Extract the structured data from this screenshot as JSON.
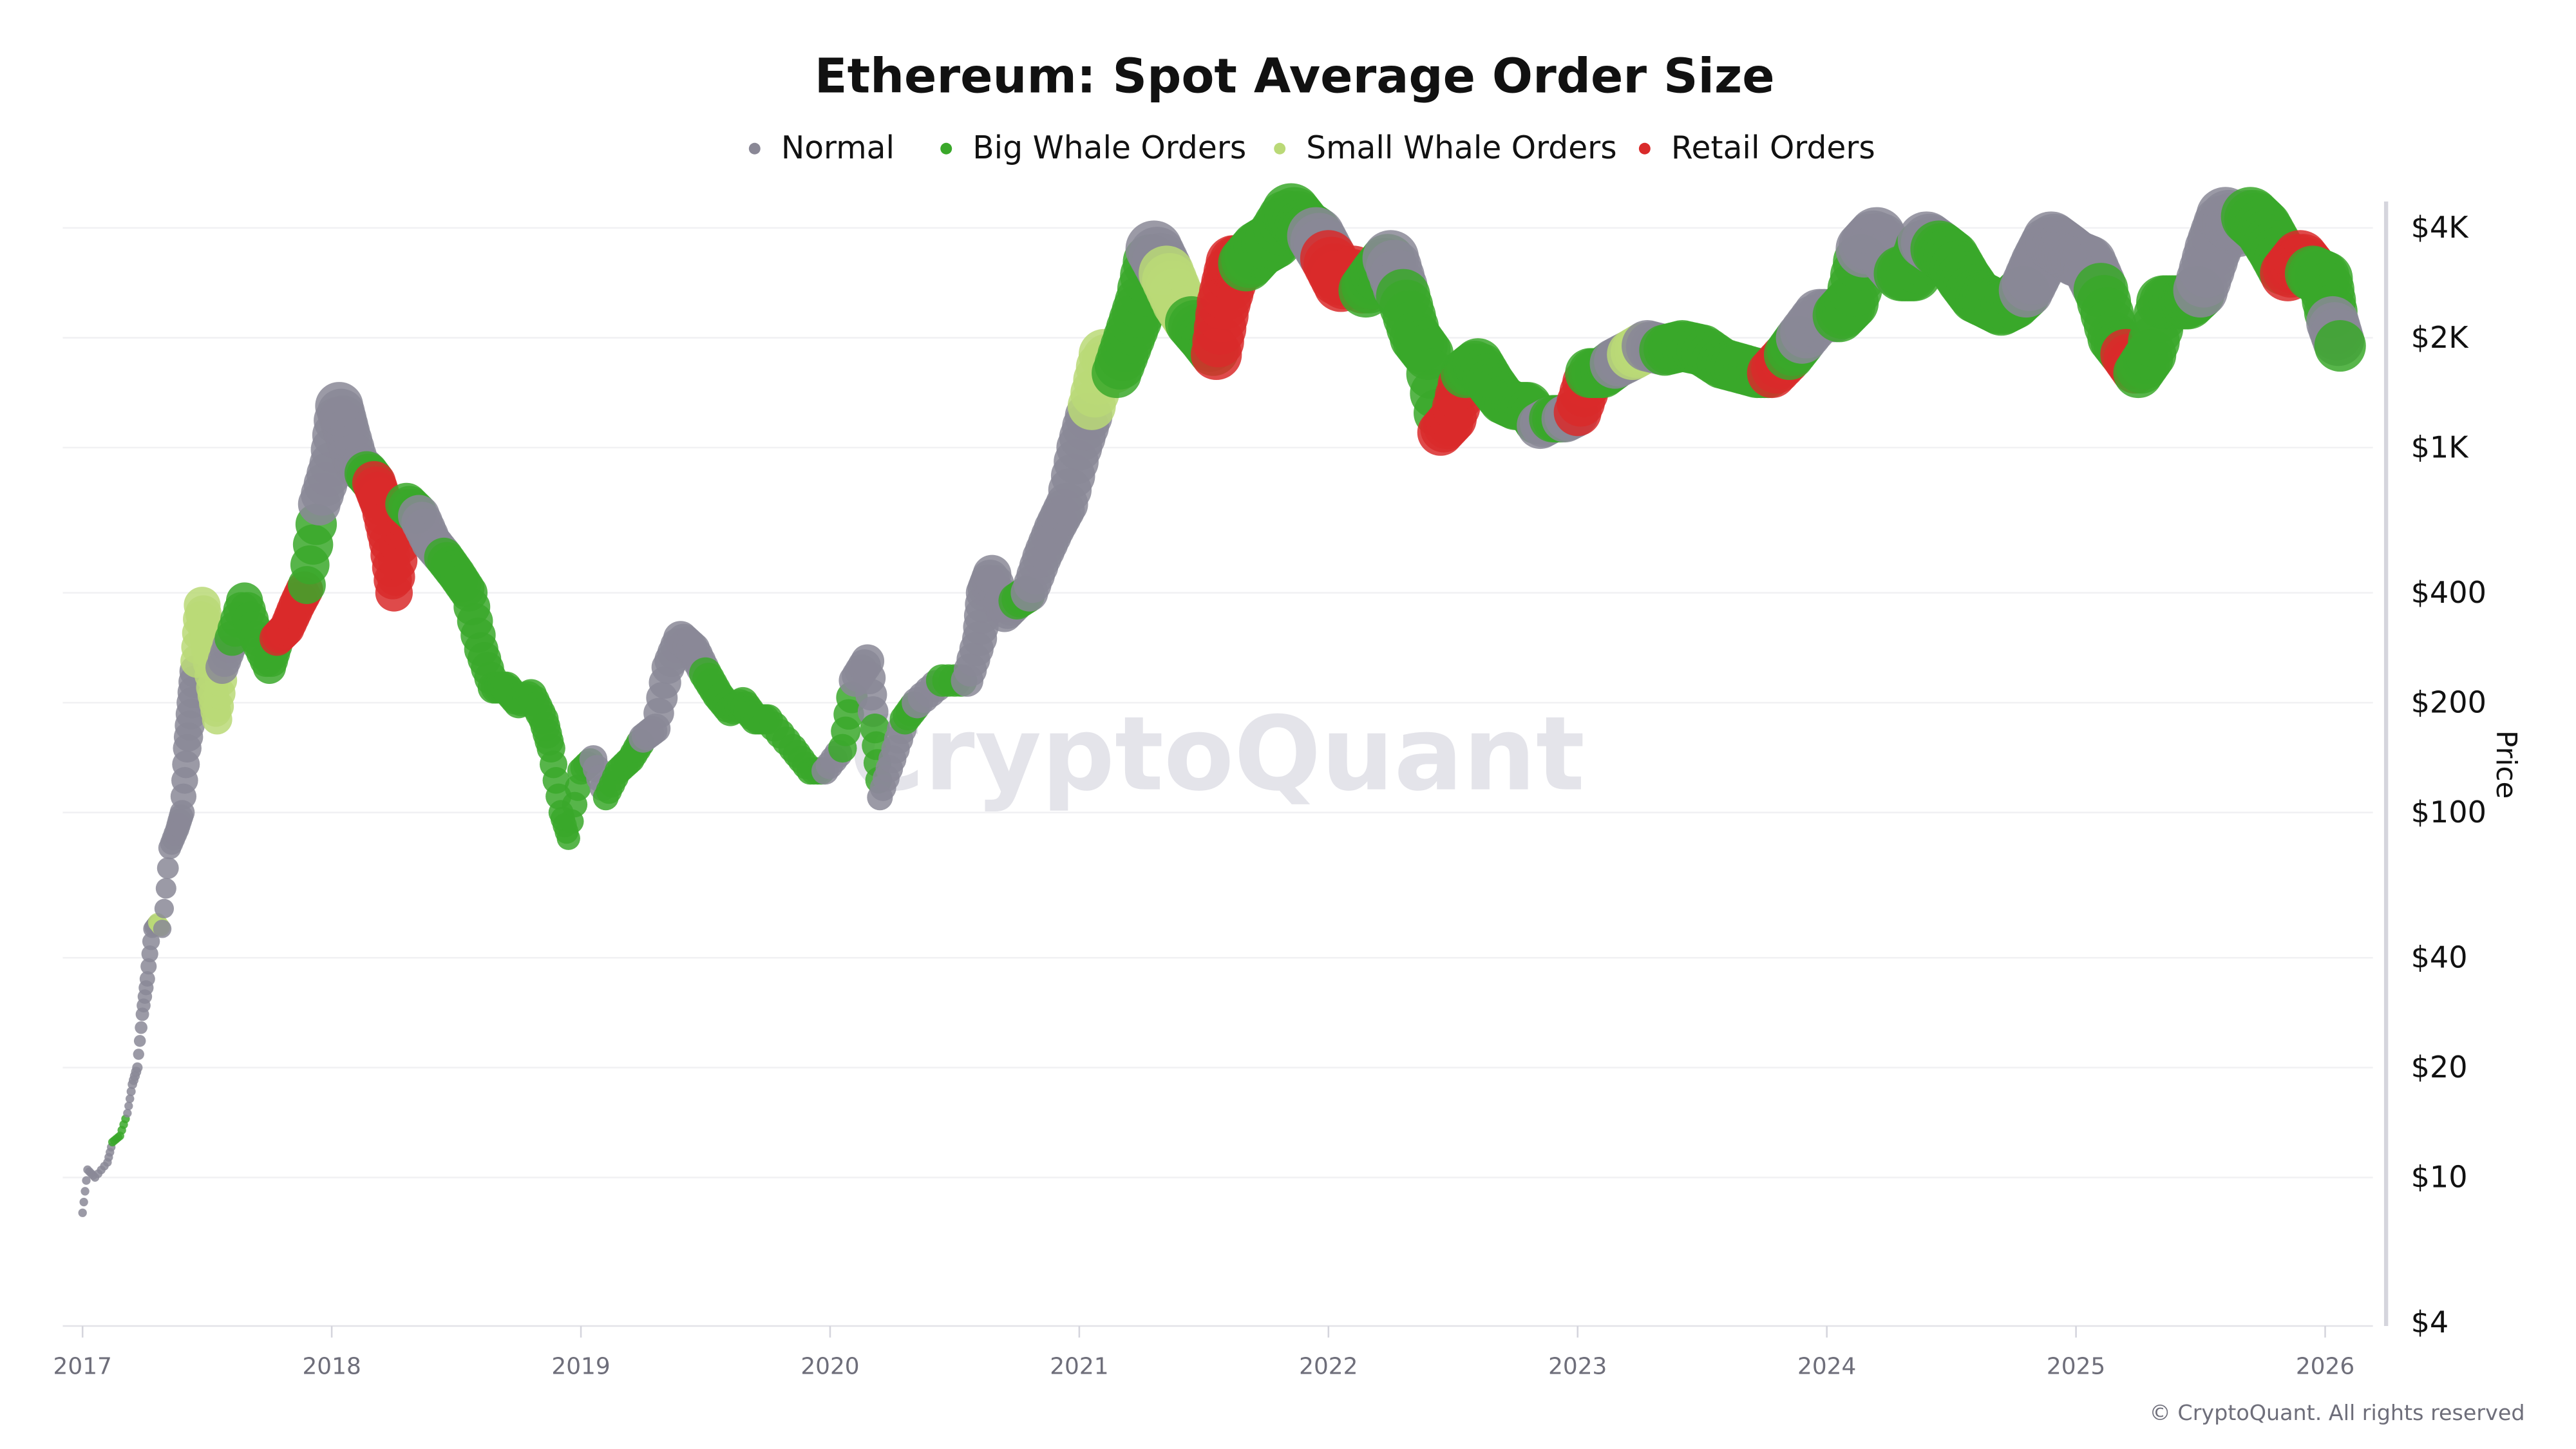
{
  "chart_data": {
    "type": "scatter",
    "title": "Ethereum: Spot Average Order Size",
    "ylabel": "Price",
    "xlabel": "",
    "y_scale": "log",
    "ylim": [
      4,
      4000
    ],
    "xlim": [
      2017,
      2026.1
    ],
    "grid": true,
    "legend_position": "top",
    "y_ticks": [
      {
        "value": 4000,
        "label": "$4K"
      },
      {
        "value": 2000,
        "label": "$2K"
      },
      {
        "value": 1000,
        "label": "$1K"
      },
      {
        "value": 400,
        "label": "$400"
      },
      {
        "value": 200,
        "label": "$200"
      },
      {
        "value": 100,
        "label": "$100"
      },
      {
        "value": 40,
        "label": "$40"
      },
      {
        "value": 20,
        "label": "$20"
      },
      {
        "value": 10,
        "label": "$10"
      },
      {
        "value": 4,
        "label": "$4"
      }
    ],
    "x_ticks": [
      "2017",
      "2018",
      "2019",
      "2020",
      "2021",
      "2022",
      "2023",
      "2024",
      "2025",
      "2026"
    ],
    "series": [
      {
        "key": "N",
        "name": "Normal",
        "color": "#8a8896"
      },
      {
        "key": "B",
        "name": "Big Whale Orders",
        "color": "#3aa82a"
      },
      {
        "key": "S",
        "name": "Small Whale Orders",
        "color": "#bad977"
      },
      {
        "key": "R",
        "name": "Retail Orders",
        "color": "#d92a2a"
      }
    ],
    "points_columns": [
      "year",
      "price",
      "category"
    ],
    "points": [
      [
        2017.0,
        8,
        "N"
      ],
      [
        2017.02,
        10.5,
        "N"
      ],
      [
        2017.05,
        10,
        "N"
      ],
      [
        2017.1,
        11,
        "N"
      ],
      [
        2017.12,
        12.5,
        "B"
      ],
      [
        2017.15,
        13,
        "B"
      ],
      [
        2017.18,
        15,
        "N"
      ],
      [
        2017.2,
        18,
        "N"
      ],
      [
        2017.22,
        20,
        "N"
      ],
      [
        2017.24,
        28,
        "N"
      ],
      [
        2017.26,
        35,
        "N"
      ],
      [
        2017.28,
        48,
        "N"
      ],
      [
        2017.3,
        50,
        "S"
      ],
      [
        2017.32,
        48,
        "N"
      ],
      [
        2017.35,
        80,
        "N"
      ],
      [
        2017.38,
        90,
        "N"
      ],
      [
        2017.4,
        100,
        "N"
      ],
      [
        2017.42,
        150,
        "N"
      ],
      [
        2017.44,
        200,
        "N"
      ],
      [
        2017.46,
        260,
        "S"
      ],
      [
        2017.48,
        370,
        "S"
      ],
      [
        2017.5,
        300,
        "S"
      ],
      [
        2017.52,
        220,
        "S"
      ],
      [
        2017.54,
        180,
        "S"
      ],
      [
        2017.56,
        250,
        "N"
      ],
      [
        2017.6,
        300,
        "B"
      ],
      [
        2017.65,
        380,
        "B"
      ],
      [
        2017.7,
        300,
        "B"
      ],
      [
        2017.75,
        250,
        "B"
      ],
      [
        2017.78,
        300,
        "R"
      ],
      [
        2017.82,
        320,
        "R"
      ],
      [
        2017.86,
        370,
        "R"
      ],
      [
        2017.9,
        420,
        "B"
      ],
      [
        2017.95,
        700,
        "N"
      ],
      [
        2018.0,
        900,
        "N"
      ],
      [
        2018.03,
        1300,
        "N"
      ],
      [
        2018.06,
        1100,
        "N"
      ],
      [
        2018.1,
        900,
        "N"
      ],
      [
        2018.14,
        850,
        "B"
      ],
      [
        2018.17,
        800,
        "R"
      ],
      [
        2018.2,
        700,
        "R"
      ],
      [
        2018.23,
        550,
        "R"
      ],
      [
        2018.25,
        400,
        "R"
      ],
      [
        2018.28,
        600,
        "R"
      ],
      [
        2018.3,
        700,
        "B"
      ],
      [
        2018.35,
        650,
        "N"
      ],
      [
        2018.4,
        550,
        "N"
      ],
      [
        2018.45,
        500,
        "B"
      ],
      [
        2018.5,
        450,
        "B"
      ],
      [
        2018.55,
        400,
        "B"
      ],
      [
        2018.6,
        280,
        "B"
      ],
      [
        2018.65,
        220,
        "B"
      ],
      [
        2018.7,
        220,
        "B"
      ],
      [
        2018.75,
        200,
        "B"
      ],
      [
        2018.8,
        210,
        "B"
      ],
      [
        2018.85,
        180,
        "B"
      ],
      [
        2018.88,
        150,
        "B"
      ],
      [
        2018.92,
        100,
        "B"
      ],
      [
        2018.95,
        85,
        "B"
      ],
      [
        2019.0,
        130,
        "B"
      ],
      [
        2019.05,
        140,
        "N"
      ],
      [
        2019.1,
        110,
        "B"
      ],
      [
        2019.15,
        130,
        "B"
      ],
      [
        2019.2,
        140,
        "B"
      ],
      [
        2019.25,
        160,
        "N"
      ],
      [
        2019.3,
        170,
        "N"
      ],
      [
        2019.35,
        250,
        "N"
      ],
      [
        2019.4,
        300,
        "N"
      ],
      [
        2019.45,
        280,
        "N"
      ],
      [
        2019.5,
        240,
        "B"
      ],
      [
        2019.55,
        210,
        "B"
      ],
      [
        2019.6,
        190,
        "B"
      ],
      [
        2019.65,
        200,
        "B"
      ],
      [
        2019.7,
        180,
        "B"
      ],
      [
        2019.75,
        180,
        "B"
      ],
      [
        2019.85,
        150,
        "B"
      ],
      [
        2019.92,
        130,
        "B"
      ],
      [
        2019.98,
        130,
        "N"
      ],
      [
        2020.05,
        150,
        "B"
      ],
      [
        2020.1,
        230,
        "N"
      ],
      [
        2020.15,
        260,
        "N"
      ],
      [
        2020.18,
        170,
        "B"
      ],
      [
        2020.2,
        110,
        "N"
      ],
      [
        2020.25,
        140,
        "N"
      ],
      [
        2020.3,
        180,
        "B"
      ],
      [
        2020.35,
        200,
        "N"
      ],
      [
        2020.45,
        230,
        "B"
      ],
      [
        2020.55,
        230,
        "N"
      ],
      [
        2020.6,
        300,
        "N"
      ],
      [
        2020.62,
        400,
        "N"
      ],
      [
        2020.65,
        450,
        "N"
      ],
      [
        2020.7,
        350,
        "N"
      ],
      [
        2020.75,
        380,
        "B"
      ],
      [
        2020.8,
        400,
        "N"
      ],
      [
        2020.85,
        500,
        "N"
      ],
      [
        2020.9,
        600,
        "N"
      ],
      [
        2020.95,
        700,
        "N"
      ],
      [
        2021.0,
        1000,
        "N"
      ],
      [
        2021.05,
        1300,
        "S"
      ],
      [
        2021.1,
        1800,
        "S"
      ],
      [
        2021.15,
        1600,
        "B"
      ],
      [
        2021.2,
        2000,
        "B"
      ],
      [
        2021.25,
        2500,
        "B"
      ],
      [
        2021.3,
        3500,
        "N"
      ],
      [
        2021.35,
        3000,
        "S"
      ],
      [
        2021.4,
        2500,
        "S"
      ],
      [
        2021.45,
        2200,
        "B"
      ],
      [
        2021.5,
        2000,
        "B"
      ],
      [
        2021.55,
        1800,
        "R"
      ],
      [
        2021.58,
        2500,
        "R"
      ],
      [
        2021.62,
        3200,
        "R"
      ],
      [
        2021.67,
        3200,
        "B"
      ],
      [
        2021.72,
        3500,
        "B"
      ],
      [
        2021.78,
        3700,
        "B"
      ],
      [
        2021.85,
        4400,
        "B"
      ],
      [
        2021.9,
        4000,
        "B"
      ],
      [
        2021.95,
        3800,
        "N"
      ],
      [
        2022.0,
        3300,
        "R"
      ],
      [
        2022.05,
        2800,
        "R"
      ],
      [
        2022.1,
        3000,
        "R"
      ],
      [
        2022.15,
        2700,
        "B"
      ],
      [
        2022.2,
        3000,
        "B"
      ],
      [
        2022.25,
        3300,
        "N"
      ],
      [
        2022.3,
        2600,
        "B"
      ],
      [
        2022.35,
        2000,
        "B"
      ],
      [
        2022.4,
        1800,
        "B"
      ],
      [
        2022.45,
        1100,
        "R"
      ],
      [
        2022.5,
        1200,
        "R"
      ],
      [
        2022.55,
        1600,
        "B"
      ],
      [
        2022.6,
        1700,
        "B"
      ],
      [
        2022.65,
        1500,
        "B"
      ],
      [
        2022.7,
        1350,
        "B"
      ],
      [
        2022.75,
        1300,
        "B"
      ],
      [
        2022.8,
        1300,
        "B"
      ],
      [
        2022.85,
        1150,
        "N"
      ],
      [
        2022.9,
        1200,
        "B"
      ],
      [
        2022.95,
        1200,
        "N"
      ],
      [
        2023.0,
        1250,
        "R"
      ],
      [
        2023.05,
        1600,
        "B"
      ],
      [
        2023.1,
        1600,
        "B"
      ],
      [
        2023.15,
        1700,
        "N"
      ],
      [
        2023.22,
        1800,
        "S"
      ],
      [
        2023.28,
        1900,
        "N"
      ],
      [
        2023.35,
        1850,
        "B"
      ],
      [
        2023.42,
        1900,
        "B"
      ],
      [
        2023.5,
        1850,
        "B"
      ],
      [
        2023.58,
        1700,
        "B"
      ],
      [
        2023.65,
        1650,
        "B"
      ],
      [
        2023.72,
        1600,
        "B"
      ],
      [
        2023.78,
        1600,
        "R"
      ],
      [
        2023.85,
        1800,
        "B"
      ],
      [
        2023.9,
        2000,
        "N"
      ],
      [
        2023.97,
        2300,
        "N"
      ],
      [
        2024.05,
        2300,
        "B"
      ],
      [
        2024.1,
        2500,
        "B"
      ],
      [
        2024.15,
        3500,
        "N"
      ],
      [
        2024.2,
        3800,
        "N"
      ],
      [
        2024.25,
        3300,
        "N"
      ],
      [
        2024.3,
        3000,
        "B"
      ],
      [
        2024.35,
        3000,
        "B"
      ],
      [
        2024.4,
        3700,
        "N"
      ],
      [
        2024.45,
        3500,
        "B"
      ],
      [
        2024.5,
        3300,
        "B"
      ],
      [
        2024.55,
        2900,
        "B"
      ],
      [
        2024.6,
        2600,
        "B"
      ],
      [
        2024.65,
        2500,
        "B"
      ],
      [
        2024.7,
        2400,
        "B"
      ],
      [
        2024.75,
        2500,
        "B"
      ],
      [
        2024.8,
        2700,
        "N"
      ],
      [
        2024.85,
        3200,
        "N"
      ],
      [
        2024.9,
        3700,
        "N"
      ],
      [
        2024.95,
        3500,
        "N"
      ],
      [
        2025.0,
        3300,
        "N"
      ],
      [
        2025.05,
        3200,
        "N"
      ],
      [
        2025.1,
        2700,
        "B"
      ],
      [
        2025.15,
        2000,
        "B"
      ],
      [
        2025.2,
        1800,
        "R"
      ],
      [
        2025.25,
        1600,
        "B"
      ],
      [
        2025.3,
        1800,
        "B"
      ],
      [
        2025.35,
        2500,
        "B"
      ],
      [
        2025.4,
        2500,
        "B"
      ],
      [
        2025.45,
        2500,
        "B"
      ],
      [
        2025.5,
        2700,
        "N"
      ],
      [
        2025.55,
        3500,
        "N"
      ],
      [
        2025.6,
        4300,
        "N"
      ],
      [
        2025.65,
        4000,
        "N"
      ],
      [
        2025.7,
        4300,
        "B"
      ],
      [
        2025.75,
        4000,
        "B"
      ],
      [
        2025.8,
        3500,
        "B"
      ],
      [
        2025.85,
        3000,
        "R"
      ],
      [
        2025.9,
        3300,
        "R"
      ],
      [
        2025.95,
        3000,
        "B"
      ],
      [
        2026.0,
        2900,
        "B"
      ],
      [
        2026.03,
        2200,
        "N"
      ],
      [
        2026.06,
        1900,
        "B"
      ]
    ]
  },
  "watermark": "CryptoQuant",
  "credit": "© CryptoQuant. All rights reserved"
}
